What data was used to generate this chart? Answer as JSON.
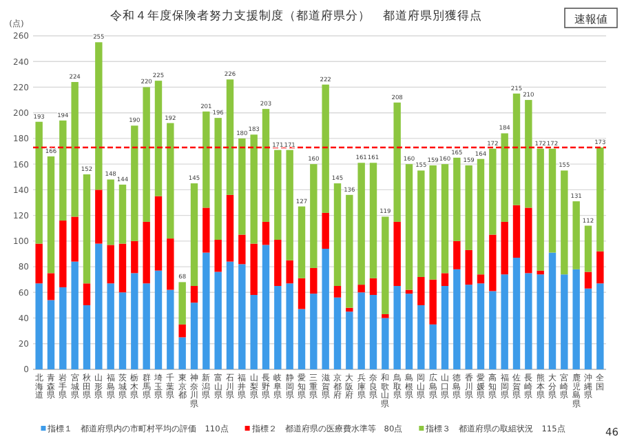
{
  "chart_data": {
    "type": "bar",
    "stacked": true,
    "title": "令和４年度保険者努力支援制度（都道府県分）　都道府県別獲得点",
    "ylabel": "(点)",
    "annotations": [
      "速報値",
      "46"
    ],
    "categories": [
      "北海道",
      "青森県",
      "岩手県",
      "宮城県",
      "秋田県",
      "山形県",
      "福島県",
      "茨城県",
      "栃木県",
      "群馬県",
      "埼玉県",
      "千葉県",
      "東京都",
      "神奈川県",
      "新潟県",
      "富山県",
      "石川県",
      "福井県",
      "山梨県",
      "長野県",
      "岐阜県",
      "静岡県",
      "愛知県",
      "三重県",
      "滋賀県",
      "京都府",
      "大阪府",
      "兵庫県",
      "奈良県",
      "和歌山県",
      "鳥取県",
      "島根県",
      "岡山県",
      "広島県",
      "山口県",
      "徳島県",
      "香川県",
      "愛媛県",
      "高知県",
      "福岡県",
      "佐賀県",
      "長崎県",
      "熊本県",
      "大分県",
      "宮崎県",
      "鹿児島県",
      "沖縄県",
      "全国"
    ],
    "series": [
      {
        "name": "指標１　都道府県内の市町村平均の評価　110点",
        "color": "#3d9be9",
        "values": [
          67,
          54,
          64,
          84,
          50,
          98,
          67,
          60,
          75,
          67,
          77,
          62,
          25,
          52,
          91,
          76,
          84,
          82,
          58,
          97,
          65,
          67,
          47,
          59,
          94,
          56,
          45,
          60,
          58,
          40,
          65,
          59,
          50,
          35,
          65,
          78,
          66,
          67,
          61,
          74,
          87,
          75,
          74,
          91,
          74,
          78,
          63,
          67
        ]
      },
      {
        "name": "指標２　都道府県の医療費水準等　80点",
        "color": "#ff0000",
        "values": [
          31,
          21,
          52,
          35,
          17,
          42,
          30,
          38,
          25,
          48,
          58,
          40,
          10,
          13,
          35,
          25,
          52,
          23,
          40,
          18,
          36,
          18,
          24,
          20,
          28,
          9,
          3,
          6,
          13,
          3,
          50,
          3,
          22,
          35,
          10,
          22,
          27,
          7,
          44,
          41,
          41,
          51,
          3,
          0,
          0,
          0,
          13,
          25
        ]
      },
      {
        "name": "指標３　都道府県の取組状況　115点",
        "color": "#8cc63f",
        "values": [
          95,
          91,
          78,
          105,
          85,
          115,
          51,
          46,
          90,
          105,
          90,
          90,
          33,
          80,
          75,
          95,
          90,
          75,
          85,
          88,
          70,
          86,
          56,
          81,
          100,
          80,
          88,
          95,
          90,
          76,
          93,
          98,
          83,
          89,
          85,
          65,
          66,
          90,
          67,
          69,
          87,
          84,
          95,
          81,
          81,
          53,
          36,
          81
        ]
      }
    ],
    "totals": [
      "193",
      "166",
      "194",
      "224",
      "152",
      "255",
      "148",
      "144",
      "190",
      "220",
      "225",
      "192",
      "68",
      "145",
      "201",
      "196",
      "226",
      "180",
      "183",
      "203",
      "171",
      "171",
      "127",
      "160",
      "222",
      "145",
      "136",
      "161",
      "161",
      "119",
      "208",
      "160",
      "155",
      "159",
      "160",
      "165",
      "159",
      "164",
      "172",
      "184",
      "215",
      "210",
      "172",
      "172",
      "155",
      "131",
      "112",
      "173"
    ],
    "ylim": [
      0,
      260
    ],
    "yticks": [
      0,
      20,
      40,
      60,
      80,
      100,
      120,
      140,
      160,
      180,
      200,
      220,
      240,
      260
    ],
    "grid": "y",
    "legend": "bottom",
    "ref_lines": [
      {
        "axis": "y",
        "value": 173,
        "color": "#ff0000",
        "line_style": "dashed"
      }
    ]
  }
}
